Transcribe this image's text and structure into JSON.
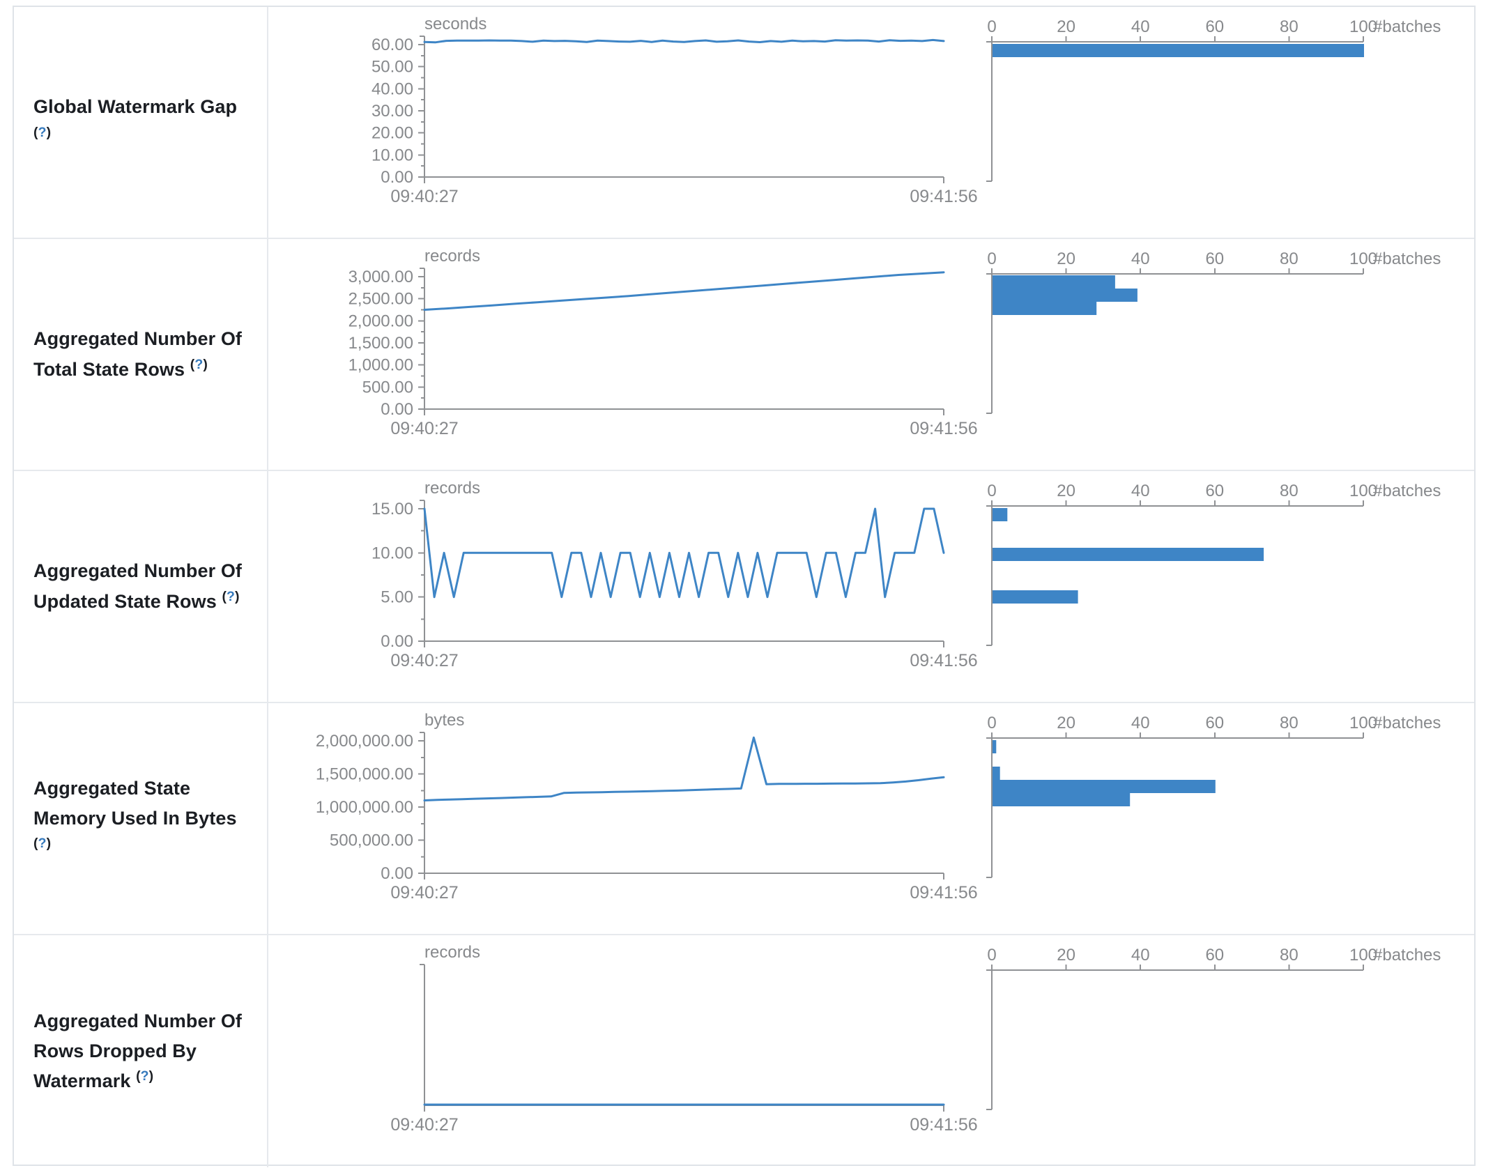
{
  "theme": {
    "accent_blue": "#3e85c6",
    "axis_gray": "#8f9194",
    "tick_text_gray": "#87898c",
    "label_text": "#1b1e23",
    "help_blue": "#3579bc",
    "border_gray": "#e6e9ed"
  },
  "time_axis": {
    "start": "09:40:27",
    "end": "09:41:56"
  },
  "hist_axis": {
    "ticks": [
      "0",
      "20",
      "40",
      "60",
      "80",
      "100"
    ],
    "max": 100,
    "label": "#batches"
  },
  "help_marker": {
    "open": "(",
    "q": "?",
    "close": ")"
  },
  "chart_data": [
    {
      "id": "global-watermark-gap",
      "label": "Global Watermark Gap",
      "timeline": {
        "type": "line",
        "unit": "seconds",
        "ylabel": "seconds",
        "xlabel_start": "09:40:27",
        "xlabel_end": "09:41:56",
        "y_ticks": [
          "60.00",
          "50.00",
          "40.00",
          "30.00",
          "20.00",
          "10.00",
          "0.00"
        ],
        "y_axis_max": 60,
        "values": [
          61.2,
          61.0,
          61.7,
          61.8,
          61.8,
          61.8,
          61.9,
          61.8,
          61.8,
          61.6,
          61.3,
          61.8,
          61.6,
          61.7,
          61.5,
          61.2,
          61.8,
          61.6,
          61.4,
          61.3,
          61.7,
          61.2,
          61.8,
          61.4,
          61.2,
          61.6,
          61.9,
          61.3,
          61.5,
          61.9,
          61.4,
          61.1,
          61.6,
          61.3,
          61.8,
          61.5,
          61.6,
          61.4,
          62.0,
          61.8,
          61.9,
          61.8,
          61.4,
          62.0,
          61.7,
          61.8,
          61.6,
          62.1,
          61.6
        ]
      },
      "histogram": {
        "type": "bar",
        "xlabel": "#batches",
        "xlim": [
          0,
          100
        ],
        "bars": [
          {
            "value_bin": "~60 seconds",
            "count": 100,
            "offset": 3
          }
        ]
      }
    },
    {
      "id": "aggregated-total-state-rows",
      "label": "Aggregated Number Of Total State Rows",
      "timeline": {
        "type": "line",
        "unit": "records",
        "ylabel": "records",
        "xlabel_start": "09:40:27",
        "xlabel_end": "09:41:56",
        "y_ticks": [
          "3,000.00",
          "2,500.00",
          "2,000.00",
          "1,500.00",
          "1,000.00",
          "500.00",
          "0.00"
        ],
        "y_axis_max": 3000,
        "values": [
          2250,
          2280,
          2315,
          2350,
          2385,
          2420,
          2455,
          2490,
          2525,
          2560,
          2600,
          2640,
          2680,
          2720,
          2760,
          2800,
          2840,
          2880,
          2920,
          2960,
          3000,
          3040,
          3070,
          3100
        ]
      },
      "histogram": {
        "type": "bar",
        "xlabel": "#batches",
        "xlim": [
          0,
          100
        ],
        "bars": [
          {
            "value_bin": "~3,000 records",
            "count": 33,
            "offset": 2
          },
          {
            "value_bin": "~2,700 records",
            "count": 39,
            "offset": 21
          },
          {
            "value_bin": "~2,400 records",
            "count": 28,
            "offset": 40
          }
        ]
      }
    },
    {
      "id": "aggregated-updated-state-rows",
      "label": "Aggregated Number Of Updated State Rows",
      "timeline": {
        "type": "line",
        "unit": "records",
        "ylabel": "records",
        "xlabel_start": "09:40:27",
        "xlabel_end": "09:41:56",
        "y_ticks": [
          "15.00",
          "10.00",
          "5.00",
          "0.00"
        ],
        "y_axis_max": 15,
        "values": [
          15,
          5,
          10,
          5,
          10,
          10,
          10,
          10,
          10,
          10,
          10,
          10,
          10,
          10,
          5,
          10,
          10,
          5,
          10,
          5,
          10,
          10,
          5,
          10,
          5,
          10,
          5,
          10,
          5,
          10,
          10,
          5,
          10,
          5,
          10,
          5,
          10,
          10,
          10,
          10,
          5,
          10,
          10,
          5,
          10,
          10,
          15,
          5,
          10,
          10,
          10,
          15,
          15,
          10
        ]
      },
      "histogram": {
        "type": "bar",
        "xlabel": "#batches",
        "xlim": [
          0,
          100
        ],
        "bars": [
          {
            "value_bin": "15 records",
            "count": 4,
            "offset": 3
          },
          {
            "value_bin": "10 records",
            "count": 73,
            "offset": 60
          },
          {
            "value_bin": "5 records",
            "count": 23,
            "offset": 121
          }
        ]
      }
    },
    {
      "id": "aggregated-state-memory",
      "label": "Aggregated State Memory Used In Bytes",
      "timeline": {
        "type": "line",
        "unit": "bytes",
        "ylabel": "bytes",
        "xlabel_start": "09:40:27",
        "xlabel_end": "09:41:56",
        "y_ticks": [
          "2,000,000.00",
          "1,500,000.00",
          "1,000,000.00",
          "500,000.00",
          "0.00"
        ],
        "y_axis_max": 2000000,
        "values": [
          1100000,
          1108000,
          1113000,
          1118000,
          1125000,
          1131000,
          1136000,
          1142000,
          1148000,
          1154000,
          1160000,
          1213000,
          1218000,
          1221000,
          1224000,
          1228000,
          1232000,
          1236000,
          1240000,
          1244000,
          1248000,
          1255000,
          1262000,
          1268000,
          1274000,
          1280000,
          2050000,
          1345000,
          1350000,
          1350000,
          1352000,
          1352000,
          1354000,
          1355000,
          1356000,
          1358000,
          1360000,
          1372000,
          1385000,
          1405000,
          1430000,
          1450000
        ]
      },
      "histogram": {
        "type": "bar",
        "xlabel": "#batches",
        "xlim": [
          0,
          100
        ],
        "bars": [
          {
            "value_bin": "~2,000,000 bytes",
            "count": 1,
            "offset": 3
          },
          {
            "value_bin": "~1,600,000 bytes",
            "count": 2,
            "offset": 41
          },
          {
            "value_bin": "~1,350,000 bytes",
            "count": 60,
            "offset": 60
          },
          {
            "value_bin": "~1,150,000 bytes",
            "count": 37,
            "offset": 79
          }
        ]
      }
    },
    {
      "id": "aggregated-rows-dropped-by-watermark",
      "label": "Aggregated Number Of Rows Dropped By Watermark",
      "timeline": {
        "type": "line",
        "unit": "records",
        "ylabel": "records",
        "xlabel_start": "09:40:27",
        "xlabel_end": "09:41:56",
        "y_ticks": [],
        "y_axis_max": null,
        "values": [
          0,
          0
        ]
      },
      "histogram": {
        "type": "bar",
        "xlabel": "#batches",
        "xlim": [
          0,
          100
        ],
        "bars": []
      }
    }
  ]
}
